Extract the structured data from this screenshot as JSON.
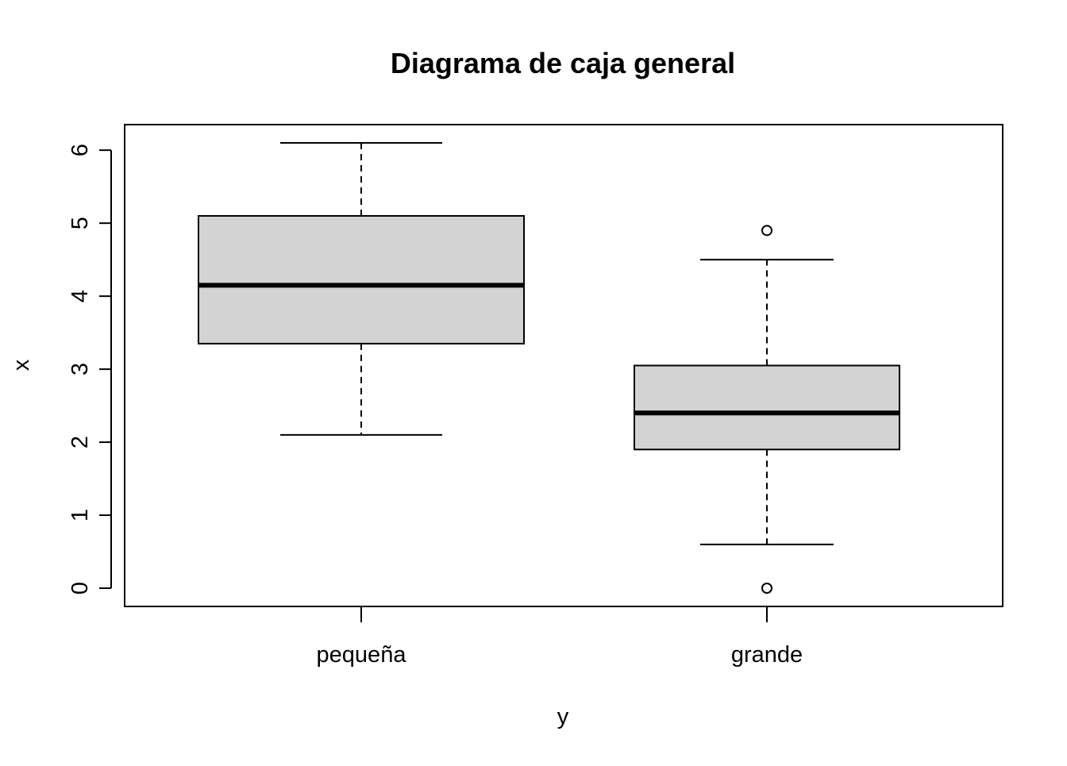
{
  "chart_data": {
    "type": "boxplot",
    "title": "Diagrama de caja general",
    "xlabel": "y",
    "ylabel": "x",
    "ylim": [
      -0.25,
      6.35
    ],
    "yticks": [
      "0",
      "1",
      "2",
      "3",
      "4",
      "5",
      "6"
    ],
    "grid": false,
    "categories": [
      "pequeña",
      "grande"
    ],
    "boxes": [
      {
        "category": "pequeña",
        "whisker_low": 2.1,
        "q1": 3.35,
        "median": 4.15,
        "q3": 5.1,
        "whisker_high": 6.1,
        "outliers": []
      },
      {
        "category": "grande",
        "whisker_low": 0.6,
        "q1": 1.9,
        "median": 2.4,
        "q3": 3.05,
        "whisker_high": 4.5,
        "outliers": [
          4.9,
          0.0
        ]
      }
    ],
    "colors": {
      "box_fill": "#d3d3d3",
      "line": "#000000"
    }
  }
}
